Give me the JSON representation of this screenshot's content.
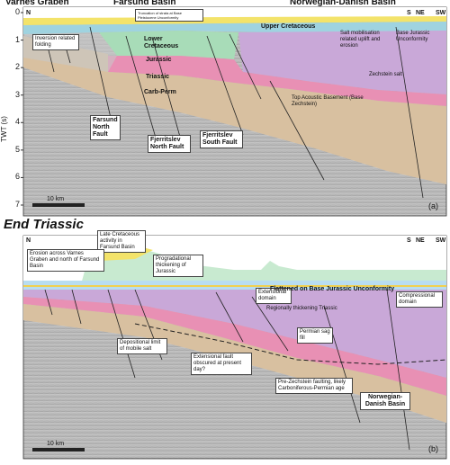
{
  "panel_a": {
    "headers": [
      "Varnes Graben",
      "Farsund Basin",
      "Norwegian-Danish Basin"
    ],
    "ends": [
      "N",
      "S",
      "NE",
      "SW"
    ],
    "axis": {
      "label": "TWT (s)",
      "ticks": [
        0,
        1,
        2,
        3,
        4,
        5,
        6,
        7
      ]
    },
    "labels": [
      "Truncation of strata at Base Pleistocene Unconformity",
      "Inversion related folding",
      "Lower Cretaceous",
      "Upper Cretaceous",
      "Jurassic",
      "Triassic",
      "Carb-Perm",
      "Salt mobilisation related uplift and erosion",
      "Base Jurassic Unconformity",
      "Zechstein salt",
      "Top Acoustic Basement (Base Zechstein)",
      "Farsund North Fault",
      "Fjerritslev North Fault",
      "Fjerritslev South Fault"
    ],
    "scale": "10 km",
    "tag": "(a)"
  },
  "panel_b": {
    "title": "End Triassic",
    "ends": [
      "N",
      "S",
      "NE",
      "SW"
    ],
    "labels": [
      "Late Cretaceous activity in Farsund Basin",
      "Erosion across Varnes Graben and north of Farsund Basin",
      "Progradational thickening of Jurassic",
      "Extensional domain",
      "Flattened on Base Jurassic Unconformity",
      "Compressional domain",
      "Regionally thickening Triassic",
      "Permian sag fill",
      "Depositional limit of mobile salt",
      "Extensional fault obscured at present day?",
      "Pre-Zechstein faulting, likely Carboniferous-Permian age",
      "Norwegian-Danish Basin"
    ],
    "scale": "10 km",
    "tag": "(b)"
  }
}
